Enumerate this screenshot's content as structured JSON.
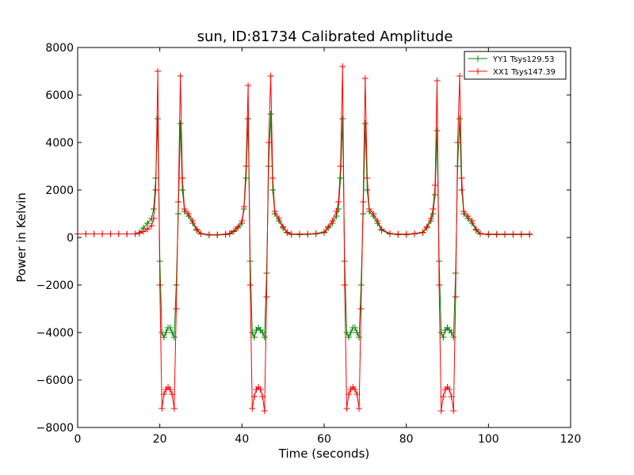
{
  "chart_data": {
    "type": "line",
    "title": "sun, ID:81734 Calibrated Amplitude",
    "xlabel": "Time (seconds)",
    "ylabel": "Power in Kelvin",
    "xlim": [
      0,
      120
    ],
    "ylim": [
      -8000,
      8000
    ],
    "xticks": [
      0,
      20,
      40,
      60,
      80,
      100,
      120
    ],
    "yticks": [
      -8000,
      -6000,
      -4000,
      -2000,
      0,
      2000,
      4000,
      6000,
      8000
    ],
    "xtick_labels": [
      "0",
      "20",
      "40",
      "60",
      "80",
      "100",
      "120"
    ],
    "ytick_labels": [
      "−8000",
      "−6000",
      "−4000",
      "−2000",
      "0",
      "2000",
      "4000",
      "6000",
      "8000"
    ],
    "grid": false,
    "legend_position": "top-right",
    "marker": "+",
    "series": [
      {
        "name": "YY1 Tsys129.53",
        "color": "#008000",
        "x": [
          0,
          2,
          4,
          6,
          8,
          10,
          12,
          14,
          15,
          16,
          17,
          18,
          18.5,
          19,
          19.5,
          20,
          20.5,
          21,
          21.5,
          22,
          22.5,
          23,
          23.5,
          24,
          24.5,
          25,
          25.5,
          26,
          27,
          28,
          29,
          30,
          32,
          34,
          36,
          37,
          38,
          39,
          40,
          40.5,
          41,
          41.5,
          42,
          42.5,
          43,
          43.5,
          44,
          44.5,
          45,
          45.5,
          46,
          46.5,
          47,
          47.5,
          48,
          49,
          50,
          51,
          52,
          54,
          56,
          58,
          60,
          61,
          62,
          63,
          63.5,
          64,
          64.5,
          65,
          65.5,
          66,
          66.5,
          67,
          67.5,
          68,
          68.5,
          69,
          69.5,
          70,
          70.5,
          71,
          72,
          73,
          74,
          76,
          78,
          80,
          82,
          84,
          85,
          86,
          86.5,
          87,
          87.5,
          88,
          88.5,
          89,
          89.5,
          90,
          90.5,
          91,
          91.5,
          92,
          92.5,
          93,
          93.5,
          94,
          95,
          96,
          97,
          98,
          100,
          102,
          104,
          106,
          108,
          110
        ],
        "values": [
          150,
          150,
          150,
          150,
          150,
          150,
          150,
          150,
          200,
          400,
          600,
          800,
          1200,
          2500,
          5000,
          -1000,
          -4000,
          -4200,
          -4000,
          -3800,
          -3800,
          -4000,
          -4200,
          -2000,
          1000,
          4800,
          2000,
          1100,
          900,
          600,
          300,
          150,
          100,
          100,
          120,
          150,
          250,
          400,
          600,
          1200,
          2500,
          5000,
          -1000,
          -4000,
          -4200,
          -3900,
          -3800,
          -3900,
          -4000,
          -4200,
          -1500,
          3000,
          5200,
          2000,
          1000,
          700,
          400,
          200,
          130,
          120,
          130,
          150,
          200,
          400,
          600,
          900,
          1200,
          2500,
          5000,
          -1000,
          -4000,
          -4200,
          -4000,
          -3800,
          -3800,
          -4000,
          -4200,
          -2000,
          1000,
          4800,
          2000,
          1100,
          900,
          600,
          300,
          150,
          120,
          120,
          150,
          200,
          400,
          700,
          1000,
          1800,
          4500,
          -1000,
          -4000,
          -4200,
          -3900,
          -3800,
          -3900,
          -4000,
          -4200,
          -1500,
          3000,
          5000,
          2000,
          1000,
          800,
          600,
          300,
          150,
          120,
          120,
          120,
          120,
          120,
          120
        ]
      },
      {
        "name": "XX1 Tsys147.39",
        "color": "#ff0000",
        "x": [
          0,
          2,
          4,
          6,
          8,
          10,
          12,
          14,
          15,
          16,
          17,
          18,
          18.5,
          19,
          19.5,
          20,
          20.5,
          21,
          21.5,
          22,
          22.5,
          23,
          23.5,
          24,
          24.5,
          25,
          25.5,
          26,
          27,
          28,
          29,
          30,
          32,
          34,
          36,
          37,
          38,
          39,
          40,
          40.5,
          41,
          41.5,
          42,
          42.5,
          43,
          43.5,
          44,
          44.5,
          45,
          45.5,
          46,
          46.5,
          47,
          47.5,
          48,
          49,
          50,
          51,
          52,
          54,
          56,
          58,
          60,
          61,
          62,
          63,
          63.5,
          64,
          64.5,
          65,
          65.5,
          66,
          66.5,
          67,
          67.5,
          68,
          68.5,
          69,
          69.5,
          70,
          70.5,
          71,
          72,
          73,
          74,
          76,
          78,
          80,
          82,
          84,
          85,
          86,
          86.5,
          87,
          87.5,
          88,
          88.5,
          89,
          89.5,
          90,
          90.5,
          91,
          91.5,
          92,
          92.5,
          93,
          93.5,
          94,
          95,
          96,
          97,
          98,
          100,
          102,
          104,
          106,
          108,
          110
        ],
        "values": [
          150,
          150,
          150,
          150,
          150,
          150,
          150,
          150,
          180,
          250,
          350,
          500,
          800,
          2000,
          7000,
          -2000,
          -7200,
          -6600,
          -6400,
          -6300,
          -6400,
          -6600,
          -7200,
          -3000,
          1500,
          6800,
          2500,
          1200,
          1000,
          700,
          350,
          170,
          120,
          120,
          140,
          170,
          280,
          450,
          700,
          1300,
          3000,
          6400,
          -2000,
          -7200,
          -6700,
          -6400,
          -6300,
          -6400,
          -6700,
          -7300,
          -2500,
          4000,
          6800,
          2500,
          1100,
          800,
          450,
          220,
          150,
          140,
          150,
          170,
          230,
          450,
          700,
          1100,
          1500,
          3000,
          7200,
          -2000,
          -7200,
          -6600,
          -6400,
          -6300,
          -6400,
          -6600,
          -7200,
          -3000,
          1500,
          6700,
          2500,
          1200,
          1000,
          700,
          350,
          170,
          140,
          140,
          170,
          220,
          450,
          800,
          1200,
          2200,
          6600,
          -2000,
          -7300,
          -6700,
          -6400,
          -6300,
          -6400,
          -6700,
          -7300,
          -2500,
          4000,
          6800,
          2500,
          1100,
          900,
          700,
          350,
          170,
          140,
          140,
          140,
          140,
          140,
          140
        ]
      }
    ]
  }
}
